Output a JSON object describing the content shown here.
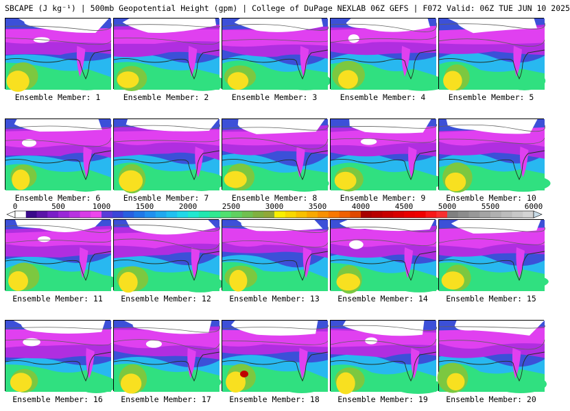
{
  "header": {
    "variable": "SBCAPE (J kg⁻¹)",
    "overlay": "500mb Geopotential Height (gpm)",
    "source": "College of DuPage NEXLAB 06Z GEFS",
    "valid": "F072 Valid: 06Z TUE JUN 10 2025",
    "separator": " | "
  },
  "members": [
    {
      "label": "Ensemble Member: 1"
    },
    {
      "label": "Ensemble Member: 2"
    },
    {
      "label": "Ensemble Member: 3"
    },
    {
      "label": "Ensemble Member: 4"
    },
    {
      "label": "Ensemble Member: 5"
    },
    {
      "label": "Ensemble Member: 6"
    },
    {
      "label": "Ensemble Member: 7"
    },
    {
      "label": "Ensemble Member: 8"
    },
    {
      "label": "Ensemble Member: 9"
    },
    {
      "label": "Ensemble Member: 10"
    },
    {
      "label": "Ensemble Member: 11"
    },
    {
      "label": "Ensemble Member: 12"
    },
    {
      "label": "Ensemble Member: 13"
    },
    {
      "label": "Ensemble Member: 14"
    },
    {
      "label": "Ensemble Member: 15"
    },
    {
      "label": "Ensemble Member: 16"
    },
    {
      "label": "Ensemble Member: 17"
    },
    {
      "label": "Ensemble Member: 18"
    },
    {
      "label": "Ensemble Member: 19"
    },
    {
      "label": "Ensemble Member: 20"
    }
  ],
  "colorbar": {
    "min": 0,
    "max": 6000,
    "ticks": [
      "0",
      "500",
      "1000",
      "1500",
      "2000",
      "2500",
      "3000",
      "3500",
      "4000",
      "4500",
      "5000",
      "5500",
      "6000"
    ],
    "colors": [
      "#ffffff",
      "#3a0a8a",
      "#5a14a8",
      "#7a1ec8",
      "#9a28d8",
      "#b832e0",
      "#d83ce8",
      "#ee46ee",
      "#5a3cd8",
      "#3c46d8",
      "#2860e0",
      "#2078e8",
      "#2090f0",
      "#20a8f0",
      "#20c0f0",
      "#20d8e8",
      "#20e8d0",
      "#20e8b0",
      "#30e890",
      "#50e070",
      "#60d060",
      "#70c050",
      "#80b040",
      "#90a838",
      "#f8f000",
      "#f8d800",
      "#f8c000",
      "#f8a800",
      "#f89000",
      "#f87800",
      "#f06000",
      "#e04800",
      "#a80000",
      "#b80000",
      "#c80000",
      "#d80000",
      "#e80000",
      "#f00000",
      "#f81818",
      "#f83030",
      "#808080",
      "#8c8c8c",
      "#989898",
      "#a4a4a4",
      "#b0b0b0",
      "#bcbcbc",
      "#c8c8c8",
      "#d4d4d4"
    ]
  },
  "map_palette": {
    "purple": "#b02ee0",
    "magenta": "#e040f0",
    "blue": "#3c50d8",
    "cyan": "#28b8f0",
    "green": "#30e080",
    "lime": "#7cc840",
    "yellow": "#f8e020",
    "orange": "#f8a800",
    "red": "#c00000",
    "snow": "#ffffff",
    "line": "#606060"
  }
}
